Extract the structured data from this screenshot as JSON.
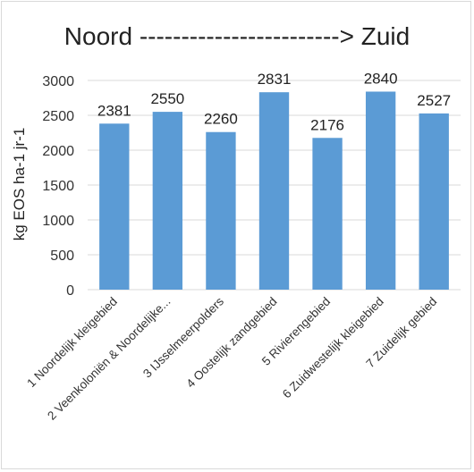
{
  "chart_data": {
    "type": "bar",
    "title": "Noord ------------------------> Zuid",
    "ylabel": "kg EOS ha-1 jr-1",
    "xlabel": "",
    "categories": [
      "1 Noordelijk kleigebied",
      "2 Veenkoloniën & Noordelijke...",
      "3 IJsselmeerpolders",
      "4 Oostelijk zandgebied",
      "5 Rivierengebied",
      "6 Zuidwestelijk kleigebied",
      "7 Zuidelijk gebied"
    ],
    "values": [
      2381,
      2550,
      2260,
      2831,
      2176,
      2840,
      2527
    ],
    "ylim": [
      0,
      3000
    ],
    "yticks": [
      "0",
      "500",
      "1000",
      "1500",
      "2000",
      "2500",
      "3000"
    ],
    "grid": true,
    "legend": "none",
    "bar_color": "#5b9bd5"
  }
}
